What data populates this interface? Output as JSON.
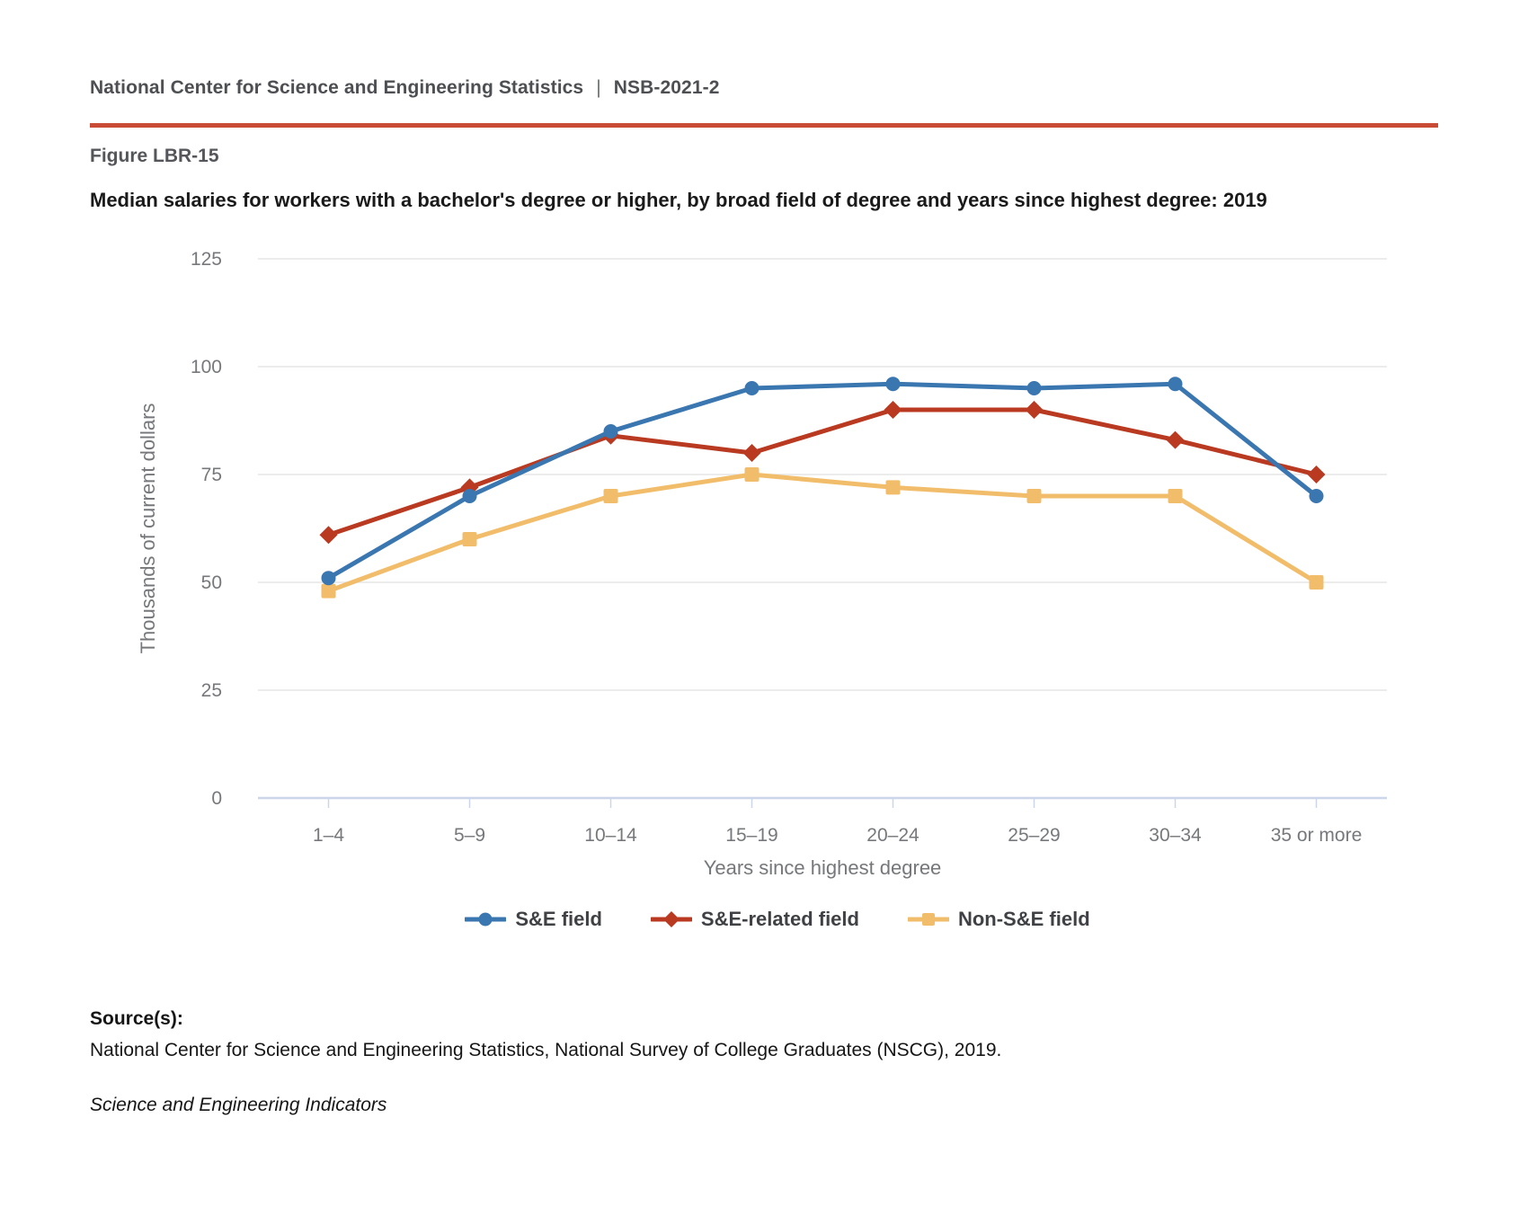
{
  "header": {
    "org": "National Center for Science and Engineering Statistics",
    "separator": "|",
    "report_code": "NSB-2021-2"
  },
  "figure": {
    "label": "Figure LBR-15",
    "title": "Median salaries for workers with a bachelor's degree or higher, by broad field of degree and years since highest degree: 2019"
  },
  "chart_data": {
    "type": "line",
    "title": "",
    "xlabel": "Years since highest degree",
    "ylabel": "Thousands of current dollars",
    "ylim": [
      0,
      125
    ],
    "ytick_step": 25,
    "yticks": [
      0,
      25,
      50,
      75,
      100,
      125
    ],
    "grid": true,
    "legend_position": "bottom",
    "categories": [
      "1–4",
      "5–9",
      "10–14",
      "15–19",
      "20–24",
      "25–29",
      "30–34",
      "35 or more"
    ],
    "series": [
      {
        "name": "S&E field",
        "marker": "circle",
        "color": "#3a76b0",
        "values": [
          51,
          70,
          85,
          95,
          96,
          95,
          96,
          70
        ]
      },
      {
        "name": "S&E-related field",
        "marker": "diamond",
        "color": "#b93a21",
        "values": [
          61,
          72,
          84,
          80,
          90,
          90,
          83,
          75
        ]
      },
      {
        "name": "Non-S&E field",
        "marker": "square",
        "color": "#f2bd6b",
        "values": [
          48,
          60,
          70,
          75,
          72,
          70,
          70,
          50
        ]
      }
    ]
  },
  "source": {
    "heading": "Source(s):",
    "text": "National Center for Science and Engineering Statistics, National Survey of College Graduates (NSCG), 2019.",
    "credit": "Science and Engineering Indicators"
  },
  "colors": {
    "rule": "#c94a35",
    "gridline": "#e6e6e6",
    "axis_line": "#ccd6eb",
    "tick_label": "#76787b",
    "axis_title": "#75777a"
  }
}
